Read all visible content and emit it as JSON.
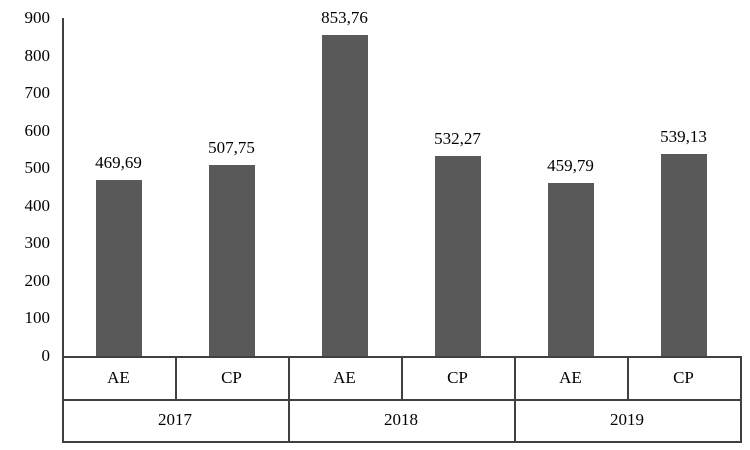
{
  "chart_data": {
    "type": "bar",
    "title": "",
    "groups": [
      "2017",
      "2018",
      "2019"
    ],
    "subcategories": [
      "AE",
      "CP"
    ],
    "categories": [
      "2017 AE",
      "2017 CP",
      "2018 AE",
      "2018 CP",
      "2019 AE",
      "2019 CP"
    ],
    "values": [
      469.69,
      507.75,
      853.76,
      532.27,
      459.79,
      539.13
    ],
    "value_labels": [
      "469,69",
      "507,75",
      "853,76",
      "532,27",
      "459,79",
      "539,13"
    ],
    "ylim": [
      0,
      900
    ],
    "ytick_step": 100,
    "ytick_labels": [
      "0",
      "100",
      "200",
      "300",
      "400",
      "500",
      "600",
      "700",
      "800",
      "900"
    ],
    "bar_color": "#595959",
    "axis_color": "#404040",
    "grid": false,
    "legend": "none"
  }
}
